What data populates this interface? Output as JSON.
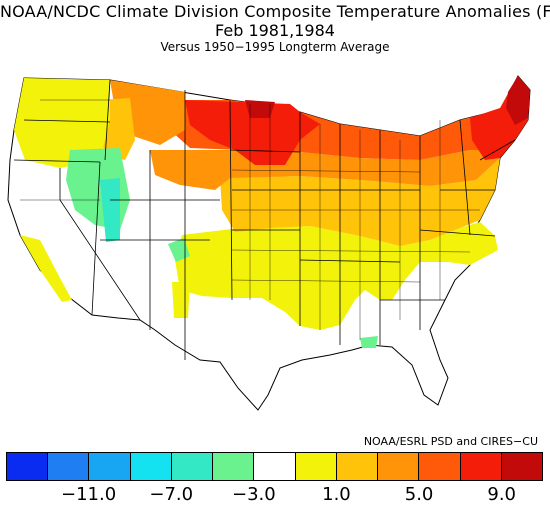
{
  "title": {
    "line1": "NOAA/NCDC Climate Division Composite Temperature Anomalies (F)",
    "line2": "Feb   1981,1984",
    "line3": "Versus 1950−1995 Longterm Average"
  },
  "credit": "NOAA/ESRL PSD and CIRES−CU",
  "legend": {
    "colors": [
      "#0a2cf0",
      "#1f7ff2",
      "#18a6f3",
      "#14e2f0",
      "#33e8c4",
      "#6af28f",
      "#ffffff",
      "#f2f20a",
      "#ffc30a",
      "#ff9408",
      "#ff5a0a",
      "#f31d0a",
      "#c20a0a"
    ],
    "tick_labels": [
      "−11.0",
      "−7.0",
      "−3.0",
      "1.0",
      "5.0",
      "9.0"
    ],
    "tick_positions": [
      2,
      4,
      6,
      8,
      10,
      12
    ]
  },
  "map_regions": [
    {
      "name": "maine-new-england",
      "anomaly_class": 12
    },
    {
      "name": "northeast",
      "anomaly_class": 10
    },
    {
      "name": "minnesota-north-dakota",
      "anomaly_class": 12
    },
    {
      "name": "upper-midwest",
      "anomaly_class": 11
    },
    {
      "name": "north-central-plains",
      "anomaly_class": 10
    },
    {
      "name": "mid-plains-ohio-valley",
      "anomaly_class": 9
    },
    {
      "name": "mid-atlantic-southern-plains",
      "anomaly_class": 8
    },
    {
      "name": "montana-east",
      "anomaly_class": 8
    },
    {
      "name": "montana-west",
      "anomaly_class": 7
    },
    {
      "name": "pacific-northwest",
      "anomaly_class": 7
    },
    {
      "name": "california-coast",
      "anomaly_class": 7
    },
    {
      "name": "great-basin",
      "anomaly_class": 6
    },
    {
      "name": "idaho-snake-river",
      "anomaly_class": 5
    },
    {
      "name": "southwest-southeast",
      "anomaly_class": 6
    }
  ]
}
